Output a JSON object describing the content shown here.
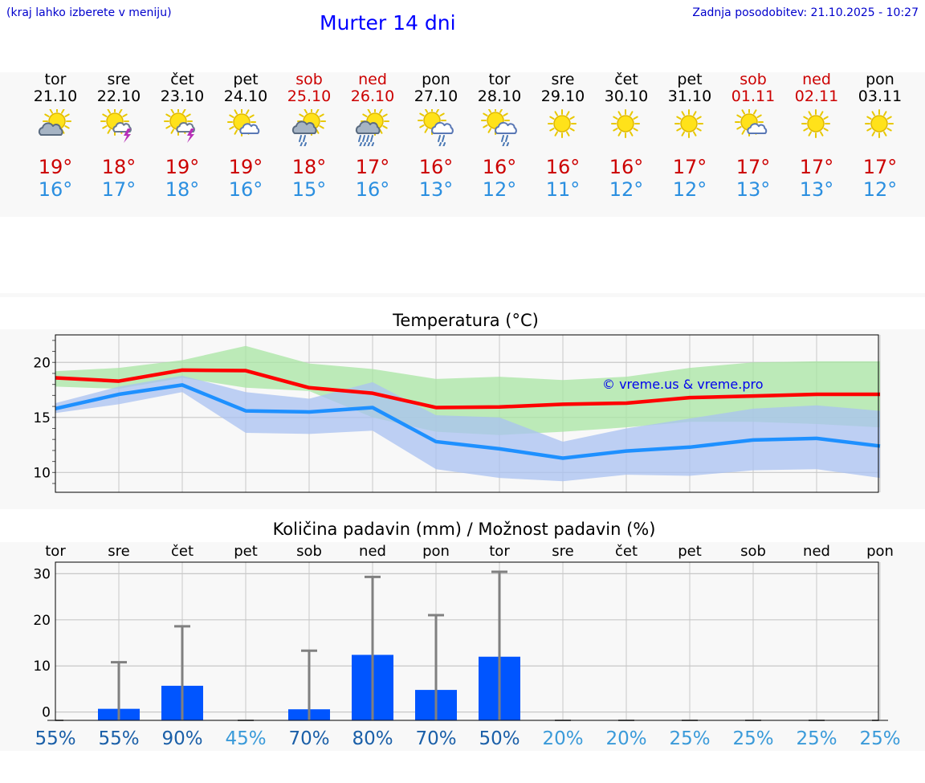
{
  "header": {
    "hint": "(kraj lahko izberete v meniju)",
    "title": "Murter 14 dni",
    "updated": "Zadnja posodobitev: 21.10.2025 - 10:27"
  },
  "days": [
    {
      "weekday": "tor",
      "date": "21.10",
      "weekend": false,
      "icon": "sun-cloud-icon",
      "tmax": "19°",
      "tmin": "16°"
    },
    {
      "weekday": "sre",
      "date": "22.10",
      "weekend": false,
      "icon": "sun-thunder-icon",
      "tmax": "18°",
      "tmin": "17°"
    },
    {
      "weekday": "čet",
      "date": "23.10",
      "weekend": false,
      "icon": "sun-thunder-icon",
      "tmax": "19°",
      "tmin": "18°"
    },
    {
      "weekday": "pet",
      "date": "24.10",
      "weekend": false,
      "icon": "sun-small-cloud-icon",
      "tmax": "19°",
      "tmin": "16°"
    },
    {
      "weekday": "sob",
      "date": "25.10",
      "weekend": true,
      "icon": "sun-rain-icon",
      "tmax": "18°",
      "tmin": "15°"
    },
    {
      "weekday": "ned",
      "date": "26.10",
      "weekend": true,
      "icon": "sun-heavy-rain-icon",
      "tmax": "17°",
      "tmin": "16°"
    },
    {
      "weekday": "pon",
      "date": "27.10",
      "weekend": false,
      "icon": "sun-cloud-rain-icon",
      "tmax": "16°",
      "tmin": "13°"
    },
    {
      "weekday": "tor",
      "date": "28.10",
      "weekend": false,
      "icon": "sun-cloud-rain-icon",
      "tmax": "16°",
      "tmin": "12°"
    },
    {
      "weekday": "sre",
      "date": "29.10",
      "weekend": false,
      "icon": "sun-icon",
      "tmax": "16°",
      "tmin": "11°"
    },
    {
      "weekday": "čet",
      "date": "30.10",
      "weekend": false,
      "icon": "sun-icon",
      "tmax": "16°",
      "tmin": "12°"
    },
    {
      "weekday": "pet",
      "date": "31.10",
      "weekend": false,
      "icon": "sun-icon",
      "tmax": "17°",
      "tmin": "12°"
    },
    {
      "weekday": "sob",
      "date": "01.11",
      "weekend": true,
      "icon": "sun-small-cloud-icon",
      "tmax": "17°",
      "tmin": "13°"
    },
    {
      "weekday": "ned",
      "date": "02.11",
      "weekend": true,
      "icon": "sun-icon",
      "tmax": "17°",
      "tmin": "13°"
    },
    {
      "weekday": "pon",
      "date": "03.11",
      "weekend": false,
      "icon": "sun-icon",
      "tmax": "17°",
      "tmin": "12°"
    }
  ],
  "colors": {
    "max_line": "#ff0000",
    "min_line": "#1e90ff",
    "max_band": "#a8e6a3",
    "min_band": "#a9c1f2",
    "bar": "#0055ff",
    "whisker": "#808080",
    "pct_high": "#1a5fa8",
    "pct_low": "#3a9ad9"
  },
  "chart_data": [
    {
      "type": "line",
      "title": "Temperatura (°C)",
      "watermark": "© vreme.us & vreme.pro",
      "categories": [
        "tor",
        "sre",
        "čet",
        "pet",
        "sob",
        "ned",
        "pon",
        "tor",
        "sre",
        "čet",
        "pet",
        "sob",
        "ned",
        "pon"
      ],
      "ylim": [
        8.2,
        22.5
      ],
      "yticks": [
        10,
        15,
        20
      ],
      "series": [
        {
          "name": "max",
          "values": [
            18.6,
            18.3,
            19.3,
            19.25,
            17.7,
            17.2,
            15.9,
            15.95,
            16.2,
            16.3,
            16.8,
            16.95,
            17.1,
            17.1
          ]
        },
        {
          "name": "min",
          "values": [
            15.8,
            17.1,
            17.95,
            15.6,
            15.5,
            15.9,
            12.8,
            12.15,
            11.3,
            11.95,
            12.3,
            12.95,
            13.1,
            12.4
          ]
        },
        {
          "name": "max_band_high",
          "values": [
            19.2,
            19.5,
            20.2,
            21.5,
            19.9,
            19.4,
            18.5,
            18.7,
            18.4,
            18.7,
            19.5,
            20.0,
            20.1,
            20.1
          ]
        },
        {
          "name": "max_band_low",
          "values": [
            17.8,
            17.6,
            18.6,
            17.7,
            17.4,
            15.0,
            13.7,
            13.4,
            13.7,
            14.1,
            14.6,
            14.6,
            14.4,
            14.1
          ]
        },
        {
          "name": "min_band_high",
          "values": [
            16.3,
            17.8,
            18.8,
            17.3,
            16.7,
            18.2,
            15.2,
            15.0,
            12.8,
            14.0,
            14.9,
            15.8,
            16.1,
            15.6
          ]
        },
        {
          "name": "min_band_low",
          "values": [
            15.4,
            16.2,
            17.3,
            13.6,
            13.5,
            13.8,
            10.3,
            9.5,
            9.2,
            9.8,
            9.7,
            10.2,
            10.3,
            9.5
          ]
        }
      ]
    },
    {
      "type": "bar",
      "title": "Količina padavin (mm) / Možnost padavin (%)",
      "categories": [
        "tor",
        "sre",
        "čet",
        "pet",
        "sob",
        "ned",
        "pon",
        "tor",
        "sre",
        "čet",
        "pet",
        "sob",
        "ned",
        "pon"
      ],
      "ylim": [
        -1.8,
        32.5
      ],
      "yticks": [
        0,
        10,
        20,
        30
      ],
      "values": [
        0,
        0.7,
        5.7,
        0,
        0.6,
        12.4,
        4.8,
        12.0,
        0,
        0,
        0,
        0,
        0,
        0
      ],
      "whisker_max": [
        0,
        10.8,
        18.6,
        0,
        13.3,
        29.3,
        21.0,
        30.4,
        0,
        0,
        0,
        0,
        0,
        0
      ],
      "probability_pct": [
        55,
        55,
        90,
        45,
        70,
        80,
        70,
        50,
        20,
        20,
        25,
        25,
        25,
        25
      ],
      "probability_labels": [
        "55%",
        "55%",
        "90%",
        "45%",
        "70%",
        "80%",
        "70%",
        "50%",
        "20%",
        "20%",
        "25%",
        "25%",
        "25%",
        "25%"
      ]
    }
  ]
}
